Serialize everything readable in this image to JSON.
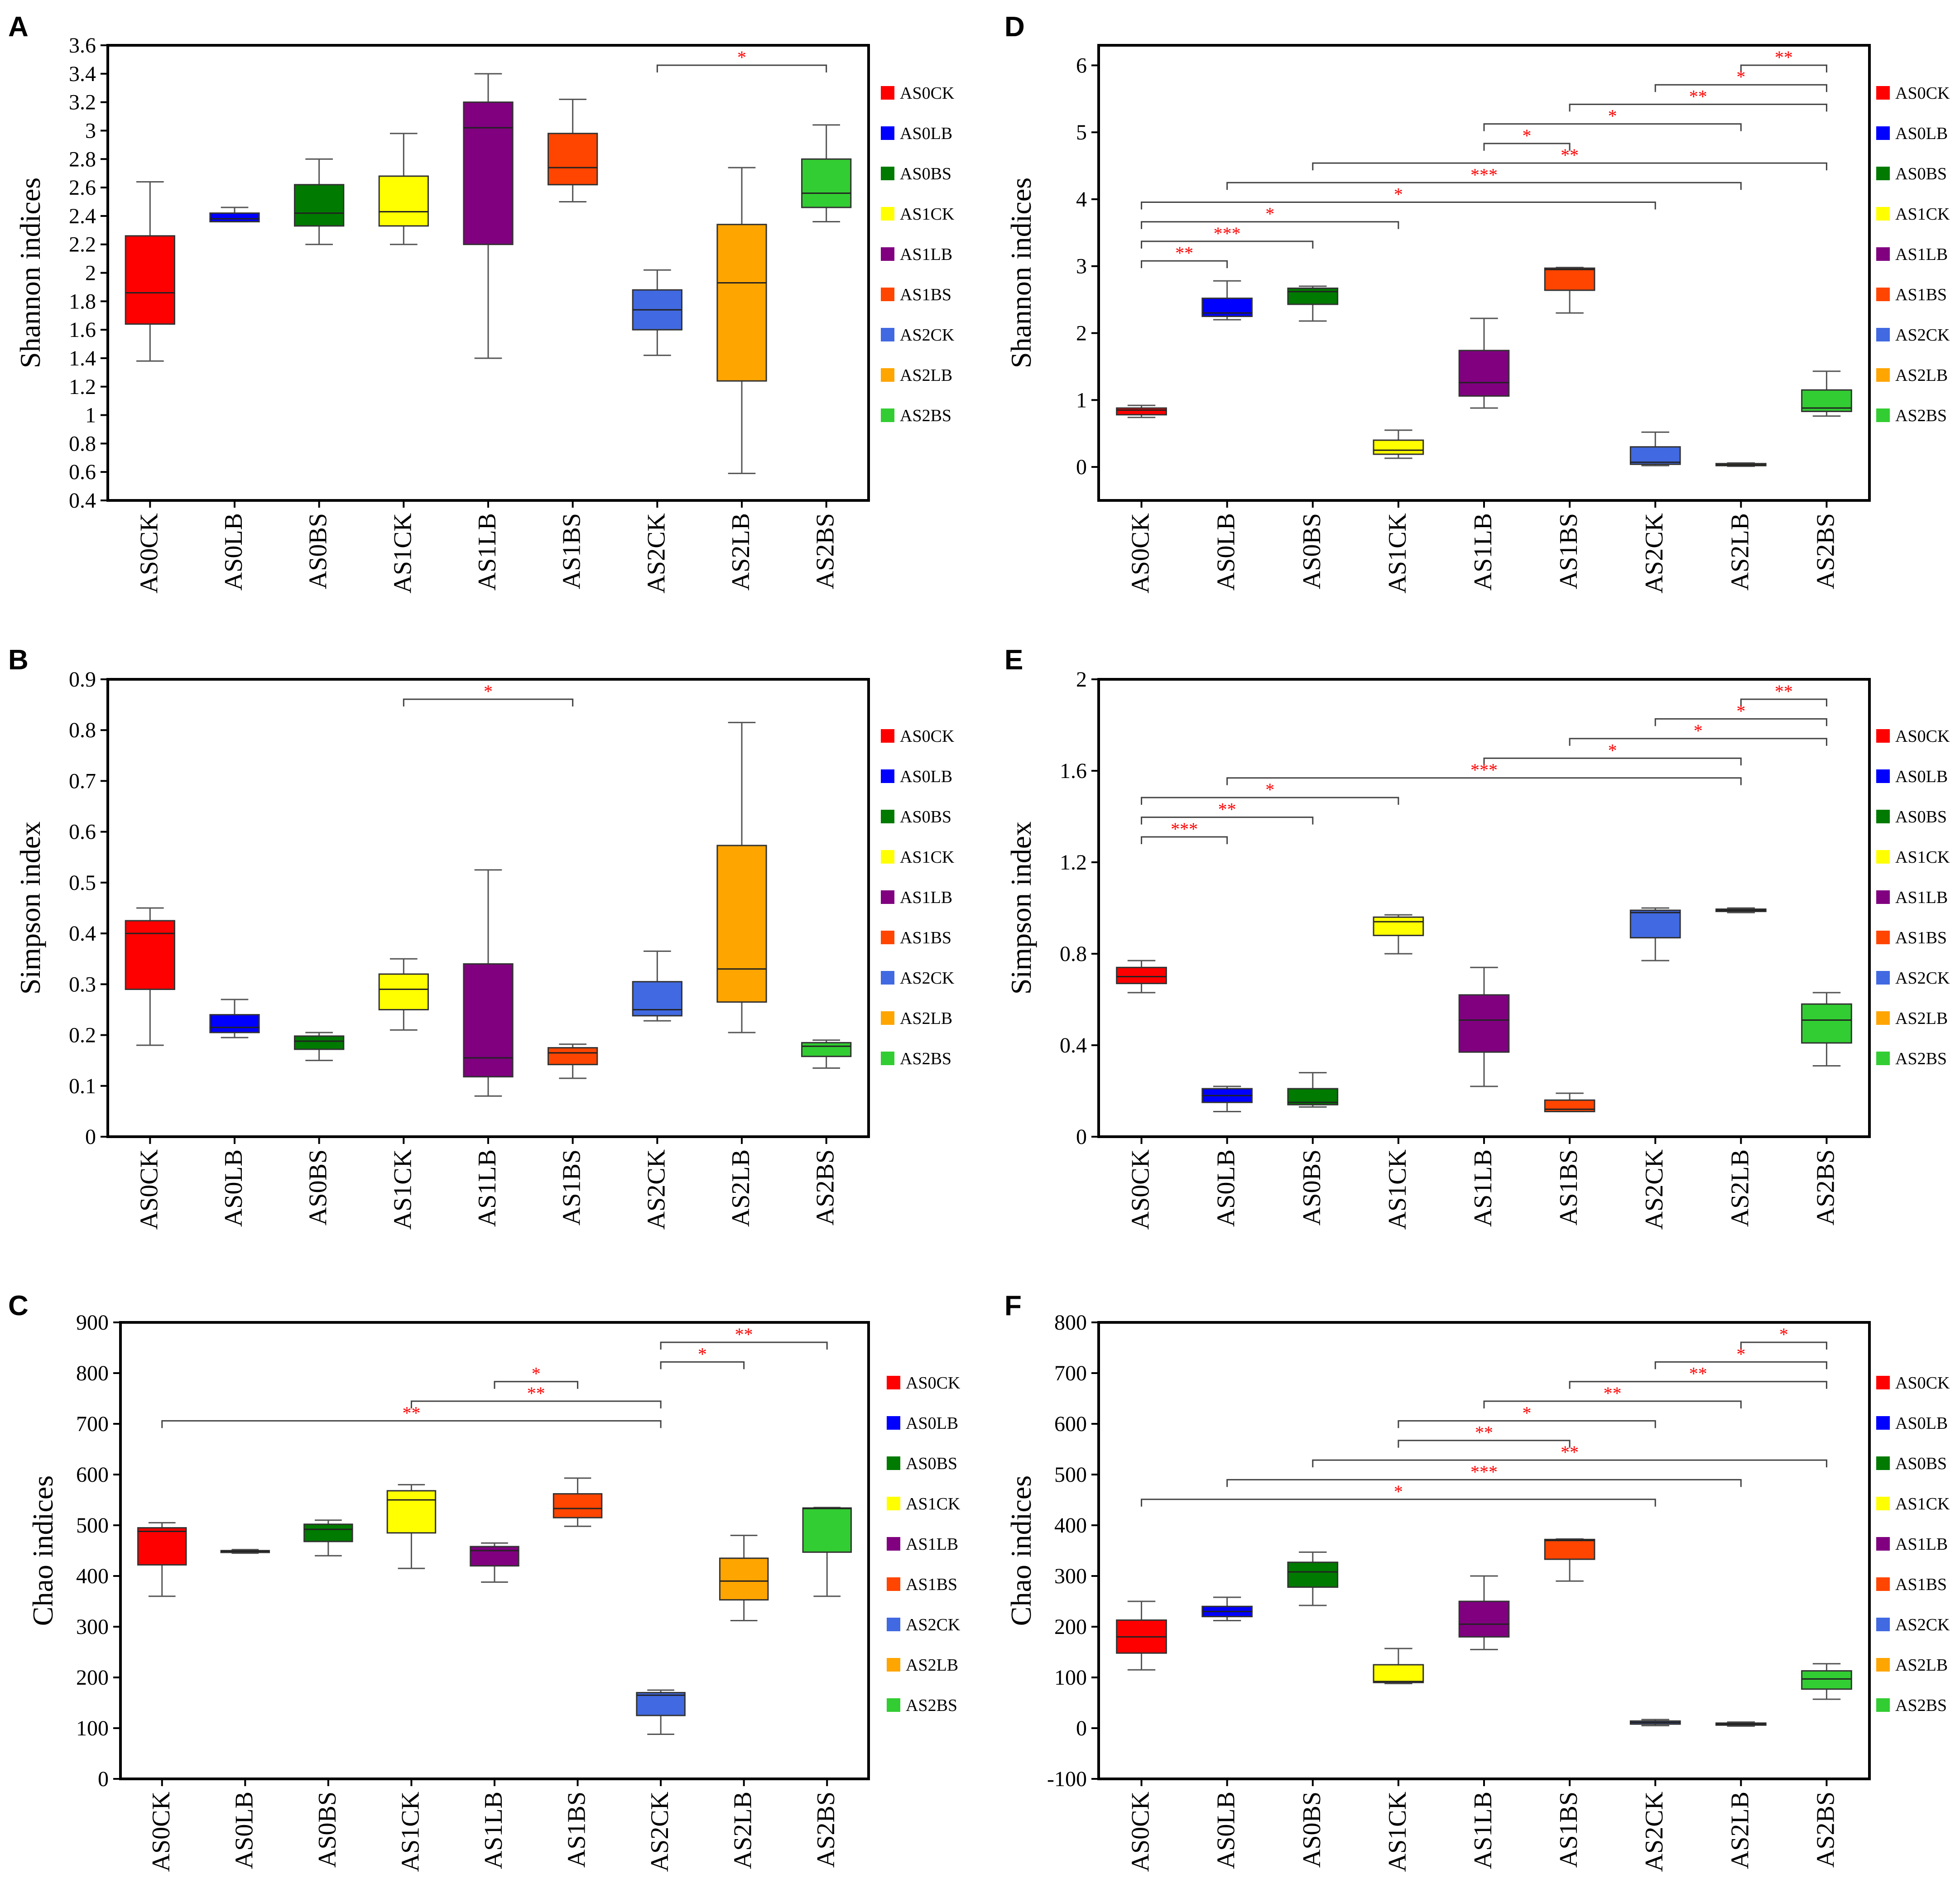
{
  "groups": [
    "AS0CK",
    "AS0LB",
    "AS0BS",
    "AS1CK",
    "AS1LB",
    "AS1BS",
    "AS2CK",
    "AS2LB",
    "AS2BS"
  ],
  "colors": {
    "AS0CK": "#ff0000",
    "AS0LB": "#0000ff",
    "AS0BS": "#007a00",
    "AS1CK": "#ffff00",
    "AS1LB": "#800080",
    "AS1BS": "#ff4500",
    "AS2CK": "#4169e1",
    "AS2LB": "#ffa500",
    "AS2BS": "#32cd32",
    "significance": "#ff0000"
  },
  "chart_data": [
    {
      "panel": "A",
      "type": "box",
      "ylabel": "Shannon indices",
      "ylim": [
        0.4,
        3.6
      ],
      "yticks": [
        "0.4",
        "0.6",
        "0.8",
        "1",
        "1.2",
        "1.4",
        "1.6",
        "1.8",
        "2",
        "2.2",
        "2.4",
        "2.6",
        "2.8",
        "3",
        "3.2",
        "3.4",
        "3.6"
      ],
      "boxes": [
        {
          "group": "AS0CK",
          "min": 1.38,
          "q1": 1.64,
          "median": 1.86,
          "q3": 2.26,
          "max": 2.64
        },
        {
          "group": "AS0LB",
          "min": 2.36,
          "q1": 2.36,
          "median": 2.38,
          "q3": 2.42,
          "max": 2.46
        },
        {
          "group": "AS0BS",
          "min": 2.2,
          "q1": 2.33,
          "median": 2.42,
          "q3": 2.62,
          "max": 2.8
        },
        {
          "group": "AS1CK",
          "min": 2.2,
          "q1": 2.33,
          "median": 2.43,
          "q3": 2.68,
          "max": 2.98
        },
        {
          "group": "AS1LB",
          "min": 1.4,
          "q1": 2.2,
          "median": 3.02,
          "q3": 3.2,
          "max": 3.4
        },
        {
          "group": "AS1BS",
          "min": 2.5,
          "q1": 2.62,
          "median": 2.74,
          "q3": 2.98,
          "max": 3.22
        },
        {
          "group": "AS2CK",
          "min": 1.42,
          "q1": 1.6,
          "median": 1.74,
          "q3": 1.88,
          "max": 2.02
        },
        {
          "group": "AS2LB",
          "min": 0.59,
          "q1": 1.24,
          "median": 1.93,
          "q3": 2.34,
          "max": 2.74
        },
        {
          "group": "AS2BS",
          "min": 2.36,
          "q1": 2.46,
          "median": 2.56,
          "q3": 2.8,
          "max": 3.04
        }
      ],
      "significance": [
        {
          "from": "AS2CK",
          "to": "AS2BS",
          "label": "*"
        }
      ]
    },
    {
      "panel": "B",
      "type": "box",
      "ylabel": "Simpson index",
      "ylim": [
        0,
        0.9
      ],
      "yticks": [
        "0",
        "0.1",
        "0.2",
        "0.3",
        "0.4",
        "0.5",
        "0.6",
        "0.7",
        "0.8",
        "0.9"
      ],
      "boxes": [
        {
          "group": "AS0CK",
          "min": 0.18,
          "q1": 0.29,
          "median": 0.4,
          "q3": 0.425,
          "max": 0.45
        },
        {
          "group": "AS0LB",
          "min": 0.195,
          "q1": 0.205,
          "median": 0.215,
          "q3": 0.24,
          "max": 0.27
        },
        {
          "group": "AS0BS",
          "min": 0.15,
          "q1": 0.172,
          "median": 0.188,
          "q3": 0.198,
          "max": 0.205
        },
        {
          "group": "AS1CK",
          "min": 0.21,
          "q1": 0.25,
          "median": 0.29,
          "q3": 0.32,
          "max": 0.35
        },
        {
          "group": "AS1LB",
          "min": 0.08,
          "q1": 0.118,
          "median": 0.155,
          "q3": 0.34,
          "max": 0.525
        },
        {
          "group": "AS1BS",
          "min": 0.115,
          "q1": 0.142,
          "median": 0.165,
          "q3": 0.175,
          "max": 0.182
        },
        {
          "group": "AS2CK",
          "min": 0.228,
          "q1": 0.238,
          "median": 0.25,
          "q3": 0.305,
          "max": 0.365
        },
        {
          "group": "AS2LB",
          "min": 0.205,
          "q1": 0.265,
          "median": 0.33,
          "q3": 0.573,
          "max": 0.815
        },
        {
          "group": "AS2BS",
          "min": 0.135,
          "q1": 0.158,
          "median": 0.178,
          "q3": 0.185,
          "max": 0.19
        }
      ],
      "significance": [
        {
          "from": "AS1CK",
          "to": "AS1BS",
          "label": "*"
        }
      ]
    },
    {
      "panel": "C",
      "type": "box",
      "ylabel": "Chao indices",
      "ylim": [
        0,
        900
      ],
      "yticks": [
        "0",
        "100",
        "200",
        "300",
        "400",
        "500",
        "600",
        "700",
        "800",
        "900"
      ],
      "boxes": [
        {
          "group": "AS0CK",
          "min": 360,
          "q1": 422,
          "median": 488,
          "q3": 495,
          "max": 505
        },
        {
          "group": "AS0LB",
          "min": 445,
          "q1": 447,
          "median": 449,
          "q3": 450,
          "max": 452
        },
        {
          "group": "AS0BS",
          "min": 440,
          "q1": 468,
          "median": 492,
          "q3": 502,
          "max": 510
        },
        {
          "group": "AS1CK",
          "min": 415,
          "q1": 485,
          "median": 550,
          "q3": 568,
          "max": 580
        },
        {
          "group": "AS1LB",
          "min": 388,
          "q1": 420,
          "median": 450,
          "q3": 458,
          "max": 465
        },
        {
          "group": "AS1BS",
          "min": 498,
          "q1": 515,
          "median": 533,
          "q3": 562,
          "max": 593
        },
        {
          "group": "AS2CK",
          "min": 88,
          "q1": 125,
          "median": 165,
          "q3": 170,
          "max": 175
        },
        {
          "group": "AS2LB",
          "min": 312,
          "q1": 353,
          "median": 390,
          "q3": 435,
          "max": 480
        },
        {
          "group": "AS2BS",
          "min": 360,
          "q1": 447,
          "median": 533,
          "q3": 534,
          "max": 535
        }
      ],
      "significance": [
        {
          "from": "AS2CK",
          "to": "AS2BS",
          "label": "**"
        },
        {
          "from": "AS2CK",
          "to": "AS2LB",
          "label": "*"
        },
        {
          "from": "AS1LB",
          "to": "AS1BS",
          "label": "*"
        },
        {
          "from": "AS1CK",
          "to": "AS2CK",
          "label": "**"
        },
        {
          "from": "AS0CK",
          "to": "AS2CK",
          "label": "**"
        }
      ]
    },
    {
      "panel": "D",
      "type": "box",
      "ylabel": "Shannon indices",
      "ylim": [
        -0.5,
        6.3
      ],
      "yticks": [
        "0",
        "1",
        "2",
        "3",
        "4",
        "5",
        "6"
      ],
      "boxes": [
        {
          "group": "AS0CK",
          "min": 0.74,
          "q1": 0.78,
          "median": 0.85,
          "q3": 0.88,
          "max": 0.92
        },
        {
          "group": "AS0LB",
          "min": 2.2,
          "q1": 2.25,
          "median": 2.3,
          "q3": 2.52,
          "max": 2.78
        },
        {
          "group": "AS0BS",
          "min": 2.18,
          "q1": 2.43,
          "median": 2.62,
          "q3": 2.67,
          "max": 2.7
        },
        {
          "group": "AS1CK",
          "min": 0.13,
          "q1": 0.19,
          "median": 0.25,
          "q3": 0.4,
          "max": 0.55
        },
        {
          "group": "AS1LB",
          "min": 0.88,
          "q1": 1.06,
          "median": 1.26,
          "q3": 1.74,
          "max": 2.22
        },
        {
          "group": "AS1BS",
          "min": 2.3,
          "q1": 2.64,
          "median": 2.95,
          "q3": 2.97,
          "max": 2.98
        },
        {
          "group": "AS2CK",
          "min": 0.02,
          "q1": 0.04,
          "median": 0.07,
          "q3": 0.3,
          "max": 0.52
        },
        {
          "group": "AS2LB",
          "min": 0.01,
          "q1": 0.02,
          "median": 0.03,
          "q3": 0.05,
          "max": 0.06
        },
        {
          "group": "AS2BS",
          "min": 0.76,
          "q1": 0.83,
          "median": 0.88,
          "q3": 1.15,
          "max": 1.43
        }
      ],
      "significance": [
        {
          "from": "AS2LB",
          "to": "AS2BS",
          "label": "**"
        },
        {
          "from": "AS2CK",
          "to": "AS2BS",
          "label": "*"
        },
        {
          "from": "AS1BS",
          "to": "AS2BS",
          "label": "**"
        },
        {
          "from": "AS1LB",
          "to": "AS2LB",
          "label": "*"
        },
        {
          "from": "AS1LB",
          "to": "AS1BS",
          "label": "*"
        },
        {
          "from": "AS0BS",
          "to": "AS2BS",
          "label": "**"
        },
        {
          "from": "AS0LB",
          "to": "AS2LB",
          "label": "***"
        },
        {
          "from": "AS0CK",
          "to": "AS2CK",
          "label": "*"
        },
        {
          "from": "AS0CK",
          "to": "AS1CK",
          "label": "*"
        },
        {
          "from": "AS0CK",
          "to": "AS0BS",
          "label": "***"
        },
        {
          "from": "AS0CK",
          "to": "AS0LB",
          "label": "**"
        }
      ]
    },
    {
      "panel": "E",
      "type": "box",
      "ylabel": "Simpson index",
      "ylim": [
        0,
        2.0
      ],
      "yticks": [
        "0",
        "0.4",
        "0.8",
        "1.2",
        "1.6",
        "2"
      ],
      "boxes": [
        {
          "group": "AS0CK",
          "min": 0.63,
          "q1": 0.67,
          "median": 0.7,
          "q3": 0.74,
          "max": 0.77
        },
        {
          "group": "AS0LB",
          "min": 0.11,
          "q1": 0.15,
          "median": 0.18,
          "q3": 0.21,
          "max": 0.22
        },
        {
          "group": "AS0BS",
          "min": 0.13,
          "q1": 0.14,
          "median": 0.15,
          "q3": 0.21,
          "max": 0.28
        },
        {
          "group": "AS1CK",
          "min": 0.8,
          "q1": 0.88,
          "median": 0.94,
          "q3": 0.96,
          "max": 0.97
        },
        {
          "group": "AS1LB",
          "min": 0.22,
          "q1": 0.37,
          "median": 0.51,
          "q3": 0.62,
          "max": 0.74
        },
        {
          "group": "AS1BS",
          "min": 0.11,
          "q1": 0.11,
          "median": 0.12,
          "q3": 0.16,
          "max": 0.19
        },
        {
          "group": "AS2CK",
          "min": 0.77,
          "q1": 0.87,
          "median": 0.98,
          "q3": 0.99,
          "max": 1.0
        },
        {
          "group": "AS2LB",
          "min": 0.98,
          "q1": 0.985,
          "median": 0.99,
          "q3": 0.995,
          "max": 1.0
        },
        {
          "group": "AS2BS",
          "min": 0.31,
          "q1": 0.41,
          "median": 0.51,
          "q3": 0.58,
          "max": 0.63
        }
      ],
      "significance": [
        {
          "from": "AS2LB",
          "to": "AS2BS",
          "label": "**"
        },
        {
          "from": "AS2CK",
          "to": "AS2BS",
          "label": "*"
        },
        {
          "from": "AS1BS",
          "to": "AS2BS",
          "label": "*"
        },
        {
          "from": "AS1LB",
          "to": "AS2LB",
          "label": "*"
        },
        {
          "from": "AS0LB",
          "to": "AS2LB",
          "label": "***"
        },
        {
          "from": "AS0CK",
          "to": "AS1CK",
          "label": "*"
        },
        {
          "from": "AS0CK",
          "to": "AS0BS",
          "label": "**"
        },
        {
          "from": "AS0CK",
          "to": "AS0LB",
          "label": "***"
        }
      ]
    },
    {
      "panel": "F",
      "type": "box",
      "ylabel": "Chao indices",
      "ylim": [
        -100,
        800
      ],
      "yticks": [
        "-100",
        "0",
        "100",
        "200",
        "300",
        "400",
        "500",
        "600",
        "700",
        "800"
      ],
      "boxes": [
        {
          "group": "AS0CK",
          "min": 115,
          "q1": 148,
          "median": 180,
          "q3": 213,
          "max": 250
        },
        {
          "group": "AS0LB",
          "min": 212,
          "q1": 220,
          "median": 230,
          "q3": 240,
          "max": 258
        },
        {
          "group": "AS0BS",
          "min": 242,
          "q1": 278,
          "median": 308,
          "q3": 327,
          "max": 347
        },
        {
          "group": "AS1CK",
          "min": 88,
          "q1": 90,
          "median": 92,
          "q3": 125,
          "max": 157
        },
        {
          "group": "AS1LB",
          "min": 155,
          "q1": 180,
          "median": 205,
          "q3": 250,
          "max": 300
        },
        {
          "group": "AS1BS",
          "min": 290,
          "q1": 333,
          "median": 370,
          "q3": 372,
          "max": 373
        },
        {
          "group": "AS2CK",
          "min": 5,
          "q1": 8,
          "median": 11,
          "q3": 14,
          "max": 17
        },
        {
          "group": "AS2LB",
          "min": 4,
          "q1": 6,
          "median": 8,
          "q3": 10,
          "max": 12
        },
        {
          "group": "AS2BS",
          "min": 57,
          "q1": 77,
          "median": 97,
          "q3": 113,
          "max": 127
        }
      ],
      "significance": [
        {
          "from": "AS2LB",
          "to": "AS2BS",
          "label": "*"
        },
        {
          "from": "AS2CK",
          "to": "AS2BS",
          "label": "*"
        },
        {
          "from": "AS1BS",
          "to": "AS2BS",
          "label": "**"
        },
        {
          "from": "AS1LB",
          "to": "AS2LB",
          "label": "**"
        },
        {
          "from": "AS1CK",
          "to": "AS2CK",
          "label": "*"
        },
        {
          "from": "AS1CK",
          "to": "AS1BS",
          "label": "**"
        },
        {
          "from": "AS0BS",
          "to": "AS2BS",
          "label": "**"
        },
        {
          "from": "AS0LB",
          "to": "AS2LB",
          "label": "***"
        },
        {
          "from": "AS0CK",
          "to": "AS2CK",
          "label": "*"
        }
      ]
    }
  ]
}
